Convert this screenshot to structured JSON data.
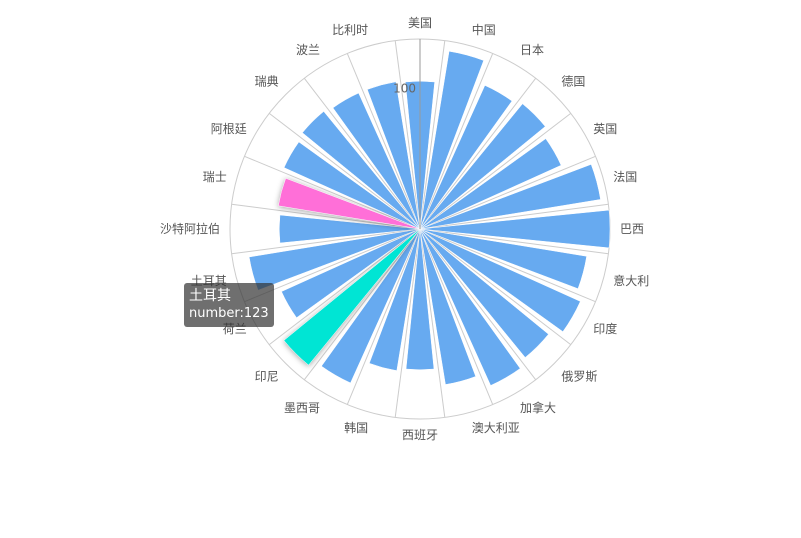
{
  "chart_data": {
    "type": "bar",
    "polar": true,
    "radius_axis_ticks": [
      100
    ],
    "radius_max": 135,
    "categories": [
      "美国",
      "中国",
      "日本",
      "德国",
      "英国",
      "法国",
      "巴西",
      "意大利",
      "印度",
      "俄罗斯",
      "加拿大",
      "澳大利亚",
      "西班牙",
      "韩国",
      "墨西哥",
      "印尼",
      "荷兰",
      "土耳其",
      "沙特阿拉伯",
      "瑞士",
      "阿根廷",
      "瑞典",
      "波兰",
      "比利时"
    ],
    "values": [
      105,
      128,
      112,
      115,
      110,
      130,
      135,
      120,
      125,
      118,
      122,
      112,
      100,
      102,
      120,
      125,
      108,
      123,
      100,
      102,
      106,
      108,
      106,
      106
    ],
    "highlight": {
      "colors": {
        "default": "#67aaf0",
        "pink": "#ff6fd8",
        "teal": "#00e5d4"
      },
      "pink_index": 19,
      "teal_index": 15
    },
    "tooltip": {
      "title": "土耳其",
      "text": "number:123"
    }
  }
}
